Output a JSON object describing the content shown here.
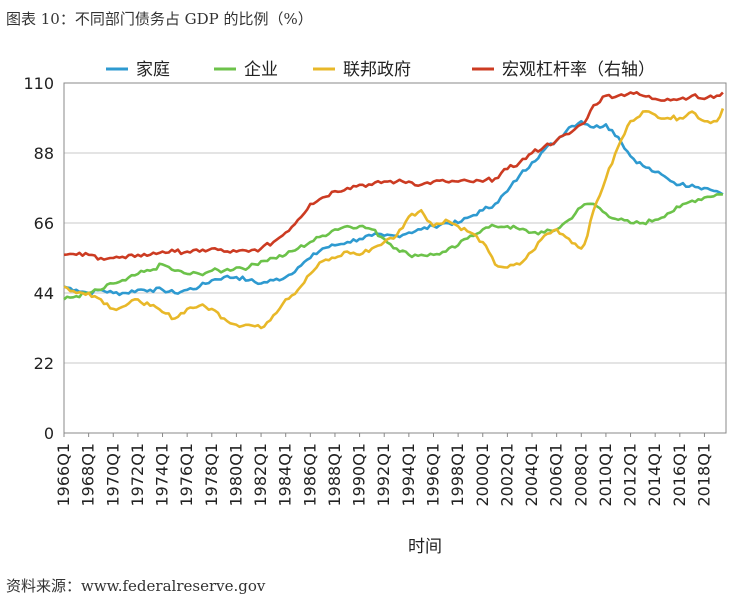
{
  "figure": {
    "title": "图表 10：不同部门债务占 GDP 的比例（%）",
    "source": "资料来源：www.federalreserve.gov"
  },
  "chart_data": {
    "type": "line",
    "title": "图表 10：不同部门债务占 GDP 的比例（%）",
    "xlabel": "时间",
    "ylabel": "",
    "ylim": [
      0,
      110
    ],
    "y_ticks": [
      0,
      22,
      44,
      66,
      88,
      110
    ],
    "x_ticks": [
      "1966Q1",
      "1968Q1",
      "1970Q1",
      "1972Q1",
      "1974Q1",
      "1976Q1",
      "1978Q1",
      "1980Q1",
      "1982Q1",
      "1984Q1",
      "1986Q1",
      "1988Q1",
      "1990Q1",
      "1992Q1",
      "1994Q1",
      "1996Q1",
      "1998Q1",
      "2000Q1",
      "2002Q1",
      "2004Q1",
      "2006Q1",
      "2008Q1",
      "2010Q1",
      "2012Q1",
      "2014Q1",
      "2016Q1",
      "2018Q1"
    ],
    "right_axis_note": "右轴",
    "grid": "horizontal",
    "legend_position": "top",
    "series": [
      {
        "name": "家庭",
        "color": "#2e9ad0",
        "axis": "left",
        "points": [
          [
            1966.0,
            46
          ],
          [
            1967.0,
            45
          ],
          [
            1968.0,
            44
          ],
          [
            1969.0,
            45
          ],
          [
            1970.0,
            44
          ],
          [
            1971.0,
            44
          ],
          [
            1972.0,
            45
          ],
          [
            1973.0,
            45
          ],
          [
            1974.0,
            45
          ],
          [
            1975.0,
            44
          ],
          [
            1976.0,
            45
          ],
          [
            1977.0,
            46
          ],
          [
            1978.0,
            48
          ],
          [
            1979.0,
            49
          ],
          [
            1980.0,
            49
          ],
          [
            1981.0,
            48
          ],
          [
            1982.0,
            47
          ],
          [
            1983.0,
            48
          ],
          [
            1984.0,
            49
          ],
          [
            1985.0,
            52
          ],
          [
            1986.0,
            55
          ],
          [
            1987.0,
            58
          ],
          [
            1988.0,
            59
          ],
          [
            1989.0,
            60
          ],
          [
            1990.0,
            61
          ],
          [
            1991.0,
            62
          ],
          [
            1992.0,
            62
          ],
          [
            1993.0,
            62
          ],
          [
            1994.0,
            63
          ],
          [
            1995.0,
            64
          ],
          [
            1996.0,
            65
          ],
          [
            1997.0,
            66
          ],
          [
            1998.0,
            66
          ],
          [
            1999.0,
            68
          ],
          [
            2000.0,
            70
          ],
          [
            2001.0,
            72
          ],
          [
            2002.0,
            76
          ],
          [
            2003.0,
            81
          ],
          [
            2004.0,
            85
          ],
          [
            2005.0,
            89
          ],
          [
            2006.0,
            92
          ],
          [
            2007.0,
            96
          ],
          [
            2008.0,
            98
          ],
          [
            2008.5,
            97
          ],
          [
            2009.0,
            96
          ],
          [
            2010.0,
            97
          ],
          [
            2011.0,
            93
          ],
          [
            2012.0,
            87
          ],
          [
            2013.0,
            84
          ],
          [
            2014.0,
            82
          ],
          [
            2015.0,
            80
          ],
          [
            2016.0,
            78
          ],
          [
            2017.0,
            78
          ],
          [
            2018.0,
            77
          ],
          [
            2019.0,
            76
          ],
          [
            2019.5,
            75
          ]
        ]
      },
      {
        "name": "企业",
        "color": "#6cc24a",
        "axis": "left",
        "points": [
          [
            1966.0,
            42
          ],
          [
            1967.0,
            43
          ],
          [
            1968.0,
            44
          ],
          [
            1969.0,
            45
          ],
          [
            1970.0,
            47
          ],
          [
            1971.0,
            48
          ],
          [
            1972.0,
            50
          ],
          [
            1973.0,
            51
          ],
          [
            1974.0,
            53
          ],
          [
            1975.0,
            51
          ],
          [
            1976.0,
            50
          ],
          [
            1977.0,
            50
          ],
          [
            1978.0,
            51
          ],
          [
            1979.0,
            51
          ],
          [
            1980.0,
            52
          ],
          [
            1981.0,
            52
          ],
          [
            1982.0,
            54
          ],
          [
            1983.0,
            55
          ],
          [
            1984.0,
            56
          ],
          [
            1985.0,
            58
          ],
          [
            1986.0,
            60
          ],
          [
            1987.0,
            62
          ],
          [
            1988.0,
            64
          ],
          [
            1989.0,
            65
          ],
          [
            1990.0,
            65
          ],
          [
            1991.0,
            64
          ],
          [
            1992.0,
            61
          ],
          [
            1993.0,
            58
          ],
          [
            1994.0,
            56
          ],
          [
            1995.0,
            56
          ],
          [
            1996.0,
            56
          ],
          [
            1997.0,
            57
          ],
          [
            1998.0,
            59
          ],
          [
            1999.0,
            62
          ],
          [
            2000.0,
            64
          ],
          [
            2001.0,
            65
          ],
          [
            2002.0,
            65
          ],
          [
            2003.0,
            64
          ],
          [
            2004.0,
            63
          ],
          [
            2005.0,
            63
          ],
          [
            2006.0,
            64
          ],
          [
            2007.0,
            67
          ],
          [
            2008.0,
            71
          ],
          [
            2008.5,
            72
          ],
          [
            2009.0,
            72
          ],
          [
            2010.0,
            69
          ],
          [
            2011.0,
            67
          ],
          [
            2012.0,
            66
          ],
          [
            2013.0,
            66
          ],
          [
            2014.0,
            67
          ],
          [
            2015.0,
            69
          ],
          [
            2016.0,
            71
          ],
          [
            2017.0,
            73
          ],
          [
            2018.0,
            74
          ],
          [
            2019.0,
            75
          ],
          [
            2019.5,
            75
          ]
        ]
      },
      {
        "name": "联邦政府",
        "color": "#e8b829",
        "axis": "left",
        "points": [
          [
            1966.0,
            46
          ],
          [
            1967.0,
            44
          ],
          [
            1968.0,
            44
          ],
          [
            1969.0,
            42
          ],
          [
            1970.0,
            39
          ],
          [
            1971.0,
            40
          ],
          [
            1972.0,
            42
          ],
          [
            1973.0,
            40
          ],
          [
            1974.0,
            38
          ],
          [
            1975.0,
            36
          ],
          [
            1976.0,
            39
          ],
          [
            1977.0,
            40
          ],
          [
            1978.0,
            39
          ],
          [
            1979.0,
            36
          ],
          [
            1980.0,
            34
          ],
          [
            1981.0,
            34
          ],
          [
            1982.0,
            33
          ],
          [
            1983.0,
            37
          ],
          [
            1984.0,
            42
          ],
          [
            1985.0,
            45
          ],
          [
            1986.0,
            50
          ],
          [
            1987.0,
            54
          ],
          [
            1988.0,
            55
          ],
          [
            1989.0,
            57
          ],
          [
            1990.0,
            56
          ],
          [
            1991.0,
            58
          ],
          [
            1992.0,
            60
          ],
          [
            1993.0,
            62
          ],
          [
            1994.0,
            68
          ],
          [
            1995.0,
            70
          ],
          [
            1996.0,
            65
          ],
          [
            1997.0,
            67
          ],
          [
            1998.0,
            65
          ],
          [
            1999.0,
            63
          ],
          [
            2000.0,
            60
          ],
          [
            2001.0,
            53
          ],
          [
            2002.0,
            52
          ],
          [
            2003.0,
            53
          ],
          [
            2004.0,
            57
          ],
          [
            2005.0,
            62
          ],
          [
            2006.0,
            64
          ],
          [
            2007.0,
            61
          ],
          [
            2008.0,
            58
          ],
          [
            2008.5,
            62
          ],
          [
            2009.0,
            70
          ],
          [
            2010.0,
            80
          ],
          [
            2011.0,
            90
          ],
          [
            2012.0,
            98
          ],
          [
            2013.0,
            101
          ],
          [
            2014.0,
            100
          ],
          [
            2015.0,
            99
          ],
          [
            2016.0,
            99
          ],
          [
            2017.0,
            101
          ],
          [
            2018.0,
            98
          ],
          [
            2019.0,
            98
          ],
          [
            2019.5,
            102
          ]
        ]
      },
      {
        "name": "宏观杠杆率（右轴）",
        "color": "#cc3b22",
        "axis": "left",
        "points": [
          [
            1966.0,
            56
          ],
          [
            1967.0,
            56
          ],
          [
            1968.0,
            56
          ],
          [
            1969.0,
            55
          ],
          [
            1970.0,
            55
          ],
          [
            1971.0,
            55
          ],
          [
            1972.0,
            56
          ],
          [
            1973.0,
            56
          ],
          [
            1974.0,
            57
          ],
          [
            1975.0,
            57
          ],
          [
            1976.0,
            57
          ],
          [
            1977.0,
            57
          ],
          [
            1978.0,
            58
          ],
          [
            1979.0,
            57
          ],
          [
            1980.0,
            57
          ],
          [
            1981.0,
            57
          ],
          [
            1982.0,
            58
          ],
          [
            1983.0,
            60
          ],
          [
            1984.0,
            63
          ],
          [
            1985.0,
            67
          ],
          [
            1986.0,
            72
          ],
          [
            1987.0,
            74
          ],
          [
            1988.0,
            76
          ],
          [
            1989.0,
            77
          ],
          [
            1990.0,
            78
          ],
          [
            1991.0,
            78
          ],
          [
            1992.0,
            79
          ],
          [
            1993.0,
            79
          ],
          [
            1994.0,
            79
          ],
          [
            1995.0,
            78
          ],
          [
            1996.0,
            79
          ],
          [
            1997.0,
            79
          ],
          [
            1998.0,
            79
          ],
          [
            1999.0,
            79
          ],
          [
            2000.0,
            79
          ],
          [
            2001.0,
            80
          ],
          [
            2002.0,
            83
          ],
          [
            2003.0,
            85
          ],
          [
            2004.0,
            88
          ],
          [
            2005.0,
            90
          ],
          [
            2006.0,
            92
          ],
          [
            2007.0,
            94
          ],
          [
            2008.0,
            97
          ],
          [
            2008.5,
            99
          ],
          [
            2009.0,
            103
          ],
          [
            2010.0,
            106
          ],
          [
            2011.0,
            106
          ],
          [
            2012.0,
            107
          ],
          [
            2013.0,
            106
          ],
          [
            2014.0,
            105
          ],
          [
            2015.0,
            105
          ],
          [
            2016.0,
            105
          ],
          [
            2017.0,
            106
          ],
          [
            2018.0,
            105
          ],
          [
            2019.0,
            106
          ],
          [
            2019.5,
            107
          ]
        ]
      }
    ]
  }
}
